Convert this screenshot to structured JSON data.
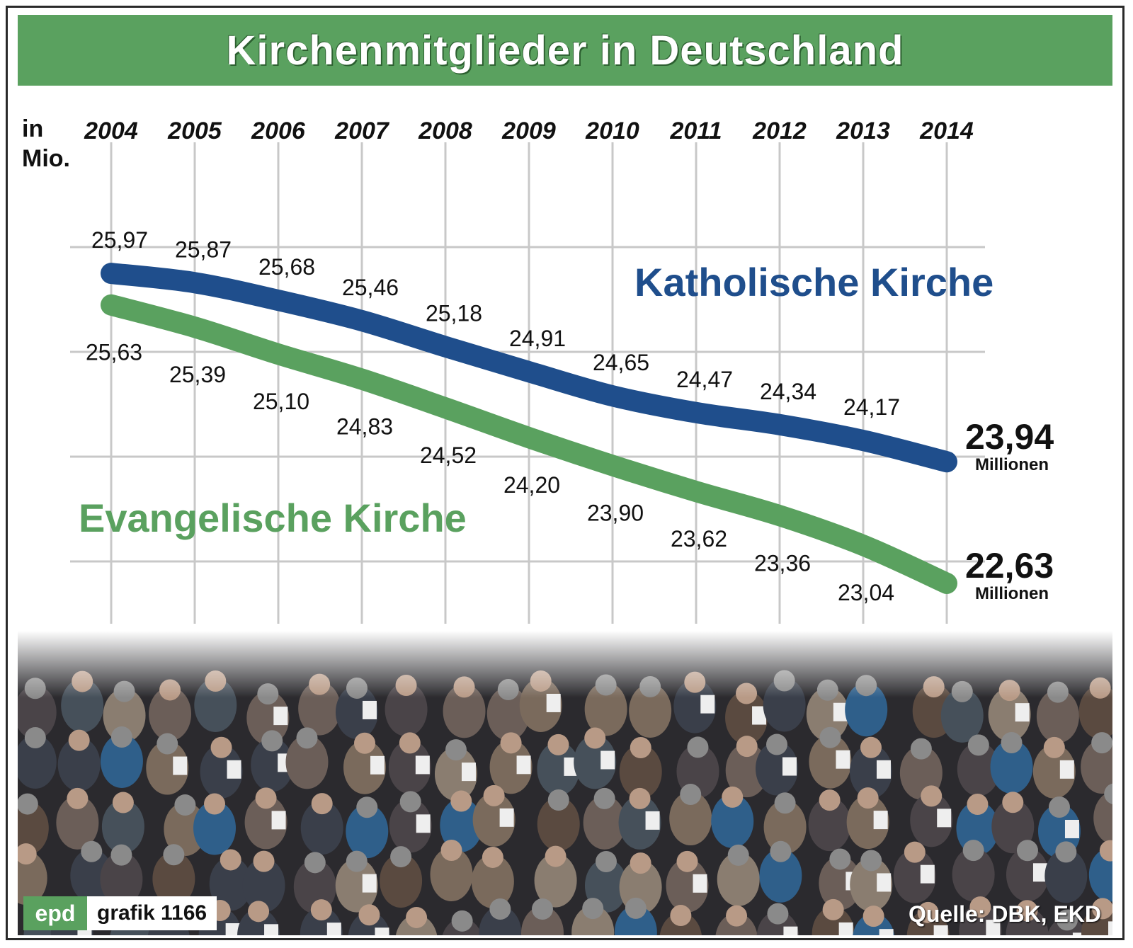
{
  "title": "Kirchenmitglieder in Deutschland",
  "unit_line1": "in",
  "unit_line2": "Mio.",
  "end_unit": "Millionen",
  "footer": {
    "logo": "epd",
    "grafik": "grafik 1166",
    "source": "Quelle: DBK, EKD"
  },
  "colors": {
    "title_bg": "#5aa15f",
    "katholisch": "#1f4e8c",
    "evangelisch": "#5aa15f"
  },
  "chart_data": {
    "type": "line",
    "title": "Kirchenmitglieder in Deutschland",
    "ylabel": "in Mio.",
    "x": [
      "2004",
      "2005",
      "2006",
      "2007",
      "2008",
      "2009",
      "2010",
      "2011",
      "2012",
      "2013",
      "2014"
    ],
    "ylim": [
      22.5,
      26.2
    ],
    "grid": true,
    "series": [
      {
        "name": "Katholische Kirche",
        "values": [
          25.97,
          25.87,
          25.68,
          25.46,
          25.18,
          24.91,
          24.65,
          24.47,
          24.34,
          24.17,
          23.94
        ],
        "labels": [
          "25,97",
          "25,87",
          "25,68",
          "25,46",
          "25,18",
          "24,91",
          "24,65",
          "24,47",
          "24,34",
          "24,17",
          "23,94"
        ]
      },
      {
        "name": "Evangelische Kirche",
        "values": [
          25.63,
          25.39,
          25.1,
          24.83,
          24.52,
          24.2,
          23.9,
          23.62,
          23.36,
          23.04,
          22.63
        ],
        "labels": [
          "25,63",
          "25,39",
          "25,10",
          "24,83",
          "24,52",
          "24,20",
          "23,90",
          "23,62",
          "23,36",
          "23,04",
          "22,63"
        ]
      }
    ]
  }
}
